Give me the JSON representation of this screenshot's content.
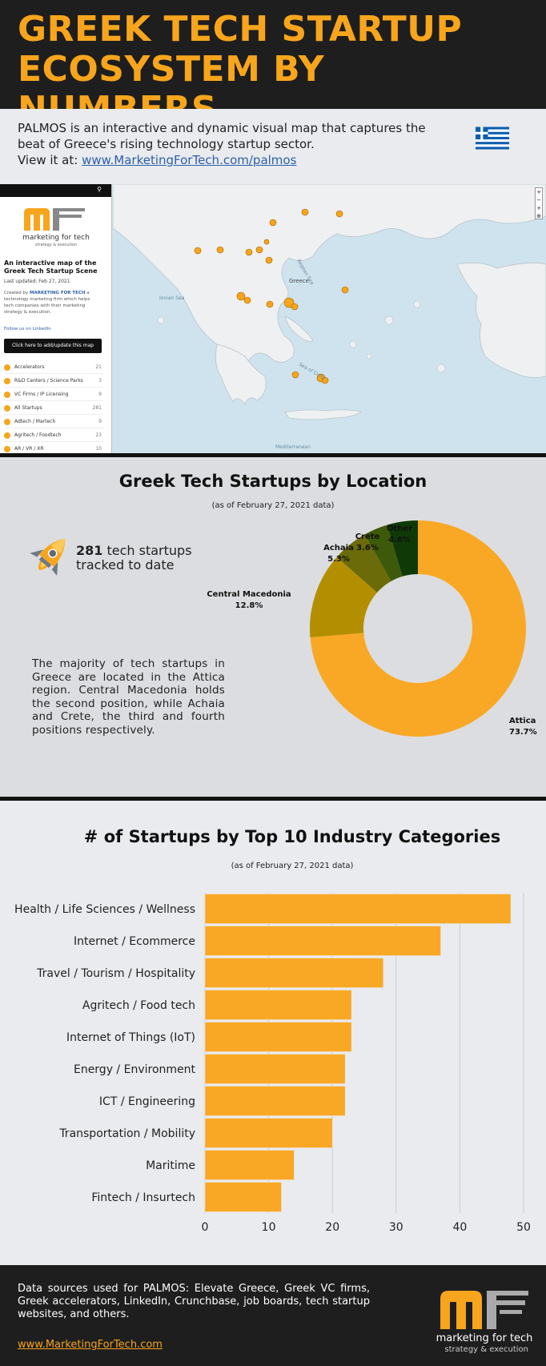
{
  "header": {
    "title": "GREEK TECH STARTUP ECOSYSTEM BY NUMBERS"
  },
  "intro": {
    "line1": "PALMOS is an interactive and dynamic visual map that captures the beat of Greece's rising technology startup sector.",
    "line2_prefix": "View it at: ",
    "link_text": "www.MarketingForTech.com/palmos"
  },
  "map_panel": {
    "logo_text": "marketing for tech",
    "logo_sub": "strategy & execution",
    "title": "An interactive map of the Greek Tech Startup Scene",
    "updated": "Last updated: Feb 27, 2021",
    "created_prefix": "Created by ",
    "created_link": "MARKETING FOR TECH",
    "created_suffix": " a technology marketing firm which helps tech companies with their marketing strategy & execution.",
    "follow": "Follow us on LinkedIn",
    "button": "Click here to add/update this map",
    "categories": [
      {
        "label": "Accelerators",
        "count": "21"
      },
      {
        "label": "R&D Centers / Science Parks",
        "count": "3"
      },
      {
        "label": "VC Firms / IP Licensing",
        "count": "9"
      },
      {
        "label": "All Startups",
        "count": "281"
      },
      {
        "label": "Adtech / Martech",
        "count": "9"
      },
      {
        "label": "Agritech / Foodtech",
        "count": "23"
      },
      {
        "label": "AR / VR / XR",
        "count": "10"
      }
    ],
    "map_labels": [
      "Greece",
      "Aegean Sea",
      "Ionian Sea",
      "Sea of Crete",
      "Mediterranean"
    ]
  },
  "location_section": {
    "title": "Greek Tech Startups by Location",
    "subtitle": "(as of February 27, 2021 data)",
    "count": "281",
    "count_suffix": " tech startups",
    "count_line2": "tracked to date",
    "description": "The majority of tech startups in Greece are located in the Attica region. Central Macedonia holds the second position, while Achaia and Crete, the third and fourth positions respectively."
  },
  "industry_section": {
    "title": "# of Startups by Top 10 Industry Categories",
    "subtitle": "(as of February 27, 2021 data)"
  },
  "chart_data": [
    {
      "type": "pie",
      "title": "Greek Tech Startups by Location",
      "donut": true,
      "slices": [
        {
          "label": "Attica",
          "value": 73.7,
          "display": "73.7%",
          "color": "#f9a825"
        },
        {
          "label": "Central Macedonia",
          "value": 12.8,
          "display": "12.8%",
          "color": "#b38f00"
        },
        {
          "label": "Achaia",
          "value": 5.3,
          "display": "5.3%",
          "color": "#6b6b0a"
        },
        {
          "label": "Crete",
          "value": 3.6,
          "display": "3.6%",
          "color": "#3d5a0a"
        },
        {
          "label": "Other",
          "value": 4.6,
          "display": "4.6%",
          "color": "#0f3a08"
        }
      ]
    },
    {
      "type": "bar",
      "orientation": "horizontal",
      "title": "# of Startups by Top 10 Industry Categories",
      "categories": [
        "Health / Life Sciences / Wellness",
        "Internet / Ecommerce",
        "Travel / Tourism / Hospitality",
        "Agritech / Food tech",
        "Internet of Things (IoT)",
        "Energy / Environment",
        "ICT / Engineering",
        "Transportation / Mobility",
        "Maritime",
        "Fintech / Insurtech"
      ],
      "values": [
        48,
        37,
        28,
        23,
        23,
        22,
        22,
        20,
        14,
        12
      ],
      "xlim": [
        0,
        50
      ],
      "xticks": [
        "0",
        "10",
        "20",
        "30",
        "40",
        "50"
      ],
      "grid": true,
      "bar_color": "#f9a825"
    }
  ],
  "footer": {
    "sources": "Data sources used for PALMOS: Elevate Greece, Greek VC firms, Greek accelerators, LinkedIn, Crunchbase, job boards, tech startup websites, and others.",
    "link": "www.MarketingForTech.com",
    "logo_text": "marketing for tech",
    "logo_sub": "strategy & execution"
  },
  "colors": {
    "accent": "#f7a51c",
    "dark": "#1e1e1e"
  }
}
